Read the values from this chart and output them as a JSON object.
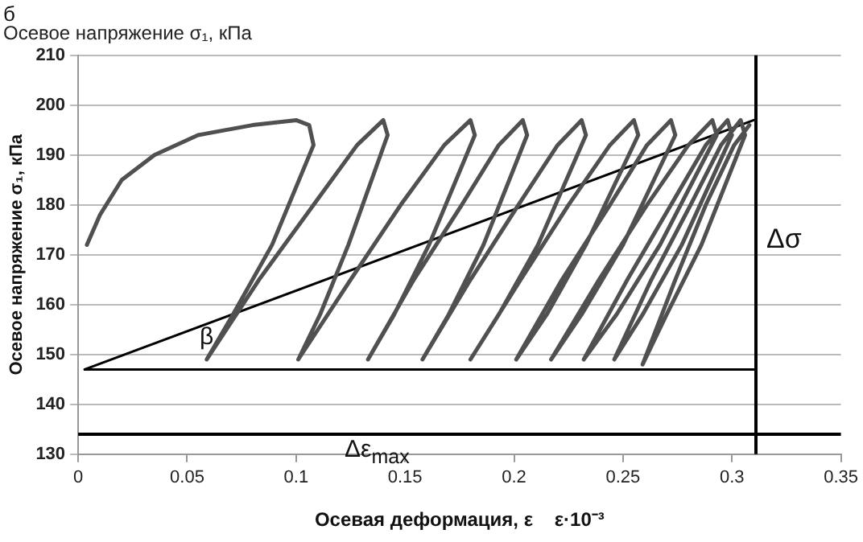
{
  "chart_data": {
    "type": "line",
    "title": "Осевое напряжение σ₁, кПа",
    "xlabel": "Осевая деформация, ε    ε·10⁻³",
    "ylabel": "Осевое напряжение σ₁, кПа",
    "annotations": [
      "б",
      "β",
      "Δσ",
      "Δε$_{max}$"
    ],
    "series": [
      {
        "color": "#505050",
        "x": [
          0.004,
          0.01,
          0.02,
          0.035,
          0.055,
          0.08,
          0.1,
          0.106,
          0.108,
          0.089,
          0.071,
          0.059,
          0.083,
          0.108,
          0.128,
          0.14,
          0.142,
          0.124,
          0.111,
          0.101,
          0.125,
          0.148,
          0.168,
          0.18,
          0.182,
          0.161,
          0.145,
          0.133,
          0.154,
          0.176,
          0.193,
          0.204,
          0.206,
          0.186,
          0.17,
          0.158,
          0.18,
          0.202,
          0.22,
          0.231,
          0.233,
          0.211,
          0.193,
          0.18,
          0.203,
          0.225,
          0.244,
          0.255,
          0.257,
          0.233,
          0.215,
          0.201,
          0.222,
          0.244,
          0.261,
          0.272,
          0.274,
          0.25,
          0.231,
          0.217,
          0.239,
          0.261,
          0.28,
          0.291,
          0.293,
          0.267,
          0.247,
          0.232,
          0.252,
          0.272,
          0.288,
          0.298,
          0.3,
          0.277,
          0.259,
          0.246,
          0.263,
          0.281,
          0.295,
          0.304,
          0.306,
          0.286,
          0.27,
          0.259,
          0.274,
          0.288,
          0.301,
          0.308
        ],
        "values": [
          172,
          178,
          185,
          190,
          194,
          196,
          197,
          196,
          192,
          172,
          158,
          149,
          165,
          180,
          192,
          197,
          194,
          172,
          158,
          149,
          165,
          180,
          192,
          197,
          194,
          172,
          158,
          149,
          165,
          180,
          192,
          197,
          194,
          172,
          158,
          149,
          165,
          180,
          192,
          197,
          194,
          172,
          158,
          149,
          165,
          180,
          192,
          197,
          194,
          172,
          158,
          149,
          165,
          180,
          192,
          197,
          194,
          172,
          158,
          149,
          165,
          180,
          192,
          197,
          194,
          172,
          158,
          149,
          165,
          180,
          192,
          197,
          194,
          172,
          158,
          149,
          165,
          180,
          192,
          197,
          194,
          172,
          158,
          148,
          165,
          180,
          192,
          196
        ]
      },
      {
        "color": "#000000",
        "x": [
          0.003,
          0.31
        ],
        "values": [
          147,
          197
        ]
      },
      {
        "color": "#000000",
        "x": [
          0.003,
          0.31
        ],
        "values": [
          147,
          147
        ]
      }
    ],
    "ref_lines": [
      {
        "axis": "y",
        "value": 134,
        "color": "#000000"
      },
      {
        "axis": "x",
        "value": 0.311,
        "color": "#000000"
      }
    ],
    "xlim": [
      0,
      0.35
    ],
    "xticks": [
      0,
      0.05,
      0.1,
      0.15,
      0.2,
      0.25,
      0.3,
      0.35
    ],
    "ylim": [
      130,
      210
    ],
    "yticks": [
      130,
      140,
      150,
      160,
      170,
      180,
      190,
      200,
      210
    ],
    "grid": "y",
    "marker": "none",
    "line_style": "solid",
    "legend": false
  }
}
